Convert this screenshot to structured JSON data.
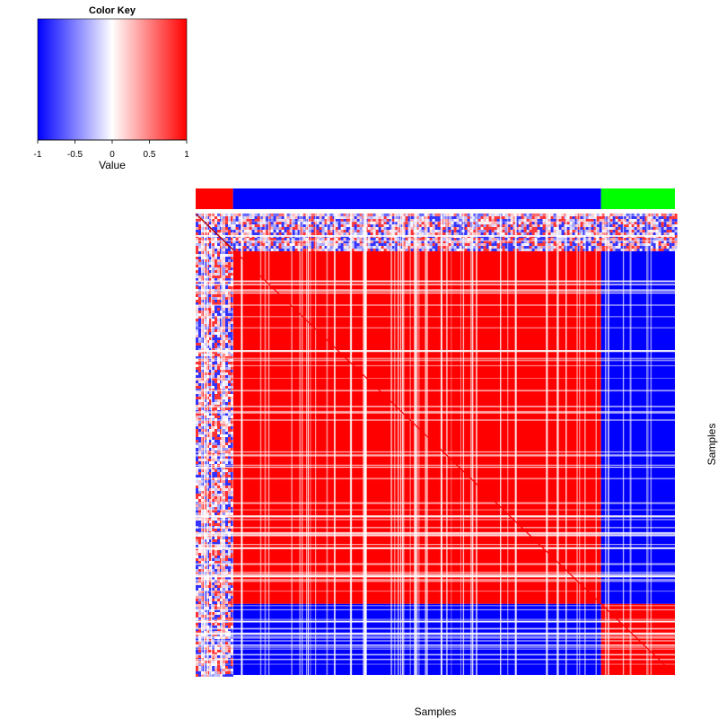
{
  "chart_data": {
    "type": "heatmap",
    "color_key": {
      "title": "Color Key",
      "xlabel": "Value",
      "range": [
        -1,
        1
      ],
      "ticks": [
        -1,
        -0.5,
        0,
        0.5,
        1
      ],
      "tick_labels": [
        "-1",
        "-0.5",
        "0",
        "0.5",
        "1"
      ],
      "colors": {
        "low": "#0000ff",
        "mid": "#ffffff",
        "high": "#ff0000"
      }
    },
    "xlabel": "Samples",
    "ylabel": "Samples",
    "groups": [
      {
        "color": "#ff0000",
        "fraction": 0.078
      },
      {
        "color": "#0000ff",
        "fraction": 0.768
      },
      {
        "color": "#00ff00",
        "fraction": 0.154
      }
    ],
    "block_correlation": [
      [
        0.3,
        -0.4,
        0.2
      ],
      [
        -0.4,
        1,
        -1
      ],
      [
        0.2,
        -1,
        1
      ]
    ],
    "diagonal_value": 1
  }
}
